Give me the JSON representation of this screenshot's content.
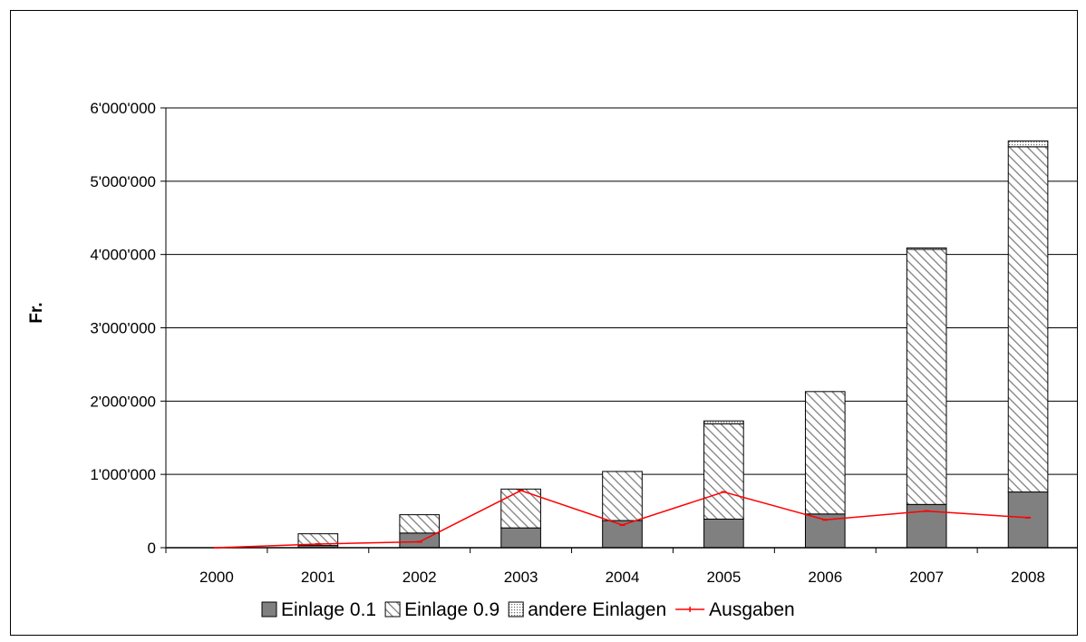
{
  "chart_data": {
    "type": "bar",
    "stacked": true,
    "categories": [
      "2000",
      "2001",
      "2002",
      "2003",
      "2004",
      "2005",
      "2006",
      "2007",
      "2008"
    ],
    "series": [
      {
        "name": "Einlage 0.1",
        "kind": "bar",
        "pattern": "solid",
        "color": "#808080",
        "values": [
          0,
          30000,
          200000,
          270000,
          370000,
          390000,
          460000,
          590000,
          760000
        ]
      },
      {
        "name": "Einlage 0.9",
        "kind": "bar",
        "pattern": "diagonal-hatch",
        "color": "#808080",
        "values": [
          0,
          160000,
          250000,
          530000,
          670000,
          1300000,
          1670000,
          3480000,
          4710000
        ]
      },
      {
        "name": "andere Einlagen",
        "kind": "bar",
        "pattern": "dotted",
        "color": "#808080",
        "values": [
          0,
          0,
          0,
          0,
          0,
          40000,
          0,
          20000,
          80000
        ]
      },
      {
        "name": "Ausgaben",
        "kind": "line",
        "color": "#ff0000",
        "values": [
          0,
          50000,
          80000,
          780000,
          310000,
          760000,
          380000,
          500000,
          410000
        ]
      }
    ],
    "title": "",
    "xlabel": "",
    "ylabel": "Fr.",
    "ylim": [
      0,
      6000000
    ],
    "yticks": [
      {
        "value": 0,
        "label": "0"
      },
      {
        "value": 1000000,
        "label": "1'000'000"
      },
      {
        "value": 2000000,
        "label": "2'000'000"
      },
      {
        "value": 3000000,
        "label": "3'000'000"
      },
      {
        "value": 4000000,
        "label": "4'000'000"
      },
      {
        "value": 5000000,
        "label": "5'000'000"
      },
      {
        "value": 6000000,
        "label": "6'000'000"
      }
    ],
    "grid": true,
    "legend_position": "bottom"
  }
}
